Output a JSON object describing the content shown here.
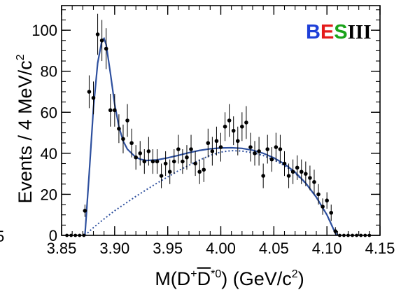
{
  "chart_data": {
    "type": "scatter",
    "title": "",
    "xlabel": {
      "prefix": "M(D",
      "sup1": "+",
      "mid": "D",
      "sup2": "*0",
      "suffix": ") (GeV/c",
      "sup3": "2",
      "end": ")"
    },
    "ylabel": {
      "main": "Events / 4 MeV/c",
      "sup": "2"
    },
    "xlim": [
      3.85,
      4.15
    ],
    "ylim": [
      0,
      112
    ],
    "x_ticks": [
      "3.85",
      "3.90",
      "3.95",
      "4.00",
      "4.05",
      "4.10",
      "4.15"
    ],
    "x_tick_values": [
      3.85,
      3.9,
      3.95,
      4.0,
      4.05,
      4.1,
      4.15
    ],
    "y_ticks": [
      "0",
      "20",
      "40",
      "60",
      "80",
      "100"
    ],
    "y_tick_values": [
      0,
      20,
      40,
      60,
      80,
      100
    ],
    "left_clipped_label": "5",
    "logo": {
      "letters": [
        "B",
        "E",
        "S",
        "III"
      ],
      "colors": [
        "#1e3fd8",
        "#e41b1b",
        "#1aa31a",
        "#000000"
      ]
    },
    "series": [
      {
        "kind": "points",
        "color": "#000000",
        "points": [
          [
            3.872,
            12,
            3
          ],
          [
            3.876,
            70,
            8
          ],
          [
            3.88,
            67,
            8
          ],
          [
            3.884,
            98,
            10
          ],
          [
            3.888,
            95,
            10
          ],
          [
            3.892,
            91,
            10
          ],
          [
            3.896,
            61,
            8
          ],
          [
            3.9,
            61,
            8
          ],
          [
            3.904,
            52,
            7
          ],
          [
            3.908,
            47,
            7
          ],
          [
            3.912,
            56,
            8
          ],
          [
            3.916,
            45,
            7
          ],
          [
            3.92,
            38,
            6
          ],
          [
            3.924,
            40,
            6
          ],
          [
            3.928,
            36,
            6
          ],
          [
            3.932,
            41,
            7
          ],
          [
            3.936,
            36,
            6
          ],
          [
            3.94,
            36,
            6
          ],
          [
            3.944,
            29,
            6
          ],
          [
            3.948,
            35,
            6
          ],
          [
            3.952,
            31,
            6
          ],
          [
            3.956,
            36,
            6
          ],
          [
            3.96,
            42,
            7
          ],
          [
            3.964,
            36,
            6
          ],
          [
            3.968,
            38,
            6
          ],
          [
            3.972,
            42,
            7
          ],
          [
            3.976,
            35,
            6
          ],
          [
            3.98,
            31,
            6
          ],
          [
            3.984,
            32,
            6
          ],
          [
            3.988,
            45,
            7
          ],
          [
            3.992,
            41,
            7
          ],
          [
            3.996,
            46,
            7
          ],
          [
            4.0,
            43,
            7
          ],
          [
            4.004,
            53,
            7
          ],
          [
            4.008,
            56,
            8
          ],
          [
            4.012,
            51,
            7
          ],
          [
            4.016,
            46,
            7
          ],
          [
            4.02,
            53,
            7
          ],
          [
            4.024,
            55,
            8
          ],
          [
            4.028,
            43,
            7
          ],
          [
            4.032,
            40,
            6
          ],
          [
            4.036,
            41,
            7
          ],
          [
            4.04,
            29,
            6
          ],
          [
            4.044,
            42,
            7
          ],
          [
            4.048,
            37,
            6
          ],
          [
            4.052,
            43,
            7
          ],
          [
            4.056,
            42,
            7
          ],
          [
            4.06,
            35,
            6
          ],
          [
            4.064,
            29,
            6
          ],
          [
            4.068,
            31,
            6
          ],
          [
            4.072,
            33,
            6
          ],
          [
            4.076,
            31,
            6
          ],
          [
            4.08,
            30,
            6
          ],
          [
            4.084,
            28,
            6
          ],
          [
            4.088,
            26,
            6
          ],
          [
            4.092,
            20,
            5
          ],
          [
            4.096,
            14,
            4
          ],
          [
            4.1,
            17,
            4
          ],
          [
            4.104,
            11,
            4
          ],
          [
            4.108,
            2,
            2
          ]
        ],
        "zero_points_x": [
          3.855,
          3.859,
          3.863,
          3.867,
          3.871,
          4.112,
          4.116,
          4.12,
          4.124,
          4.128,
          4.132,
          4.136,
          4.14
        ]
      },
      {
        "kind": "line",
        "style": "solid",
        "color": "#2d4f9e",
        "points": [
          [
            3.872,
            0
          ],
          [
            3.876,
            30
          ],
          [
            3.88,
            62
          ],
          [
            3.884,
            84
          ],
          [
            3.888,
            95
          ],
          [
            3.89,
            96
          ],
          [
            3.892,
            93
          ],
          [
            3.896,
            79
          ],
          [
            3.9,
            64
          ],
          [
            3.904,
            53
          ],
          [
            3.908,
            46
          ],
          [
            3.912,
            42
          ],
          [
            3.916,
            40
          ],
          [
            3.92,
            38
          ],
          [
            3.925,
            37
          ],
          [
            3.93,
            36.5
          ],
          [
            3.94,
            36.8
          ],
          [
            3.95,
            37.8
          ],
          [
            3.96,
            39
          ],
          [
            3.97,
            40.3
          ],
          [
            3.98,
            41.4
          ],
          [
            3.99,
            42.2
          ],
          [
            4.0,
            42.6
          ],
          [
            4.01,
            42.7
          ],
          [
            4.02,
            42.4
          ],
          [
            4.03,
            41.5
          ],
          [
            4.04,
            40
          ],
          [
            4.05,
            37.8
          ],
          [
            4.06,
            34.8
          ],
          [
            4.07,
            30.8
          ],
          [
            4.08,
            25.5
          ],
          [
            4.09,
            18.6
          ],
          [
            4.1,
            10
          ],
          [
            4.104,
            5.5
          ],
          [
            4.108,
            1
          ],
          [
            4.11,
            0
          ]
        ]
      },
      {
        "kind": "line",
        "style": "dotted",
        "color": "#2d4f9e",
        "points": [
          [
            3.872,
            0
          ],
          [
            3.88,
            3.8
          ],
          [
            3.89,
            8
          ],
          [
            3.9,
            12
          ],
          [
            3.91,
            15.5
          ],
          [
            3.92,
            19
          ],
          [
            3.93,
            22.3
          ],
          [
            3.94,
            25.5
          ],
          [
            3.95,
            28.5
          ],
          [
            3.96,
            31.5
          ],
          [
            3.97,
            34.2
          ],
          [
            3.98,
            36.7
          ],
          [
            3.99,
            39
          ],
          [
            4.0,
            40.6
          ],
          [
            4.01,
            41.3
          ],
          [
            4.02,
            41.1
          ],
          [
            4.03,
            40.3
          ],
          [
            4.04,
            38.9
          ],
          [
            4.05,
            36.8
          ],
          [
            4.06,
            34
          ],
          [
            4.07,
            30.3
          ],
          [
            4.08,
            25.3
          ],
          [
            4.09,
            18.6
          ],
          [
            4.1,
            10
          ],
          [
            4.104,
            5.5
          ],
          [
            4.108,
            1
          ],
          [
            4.11,
            0
          ]
        ]
      }
    ]
  }
}
